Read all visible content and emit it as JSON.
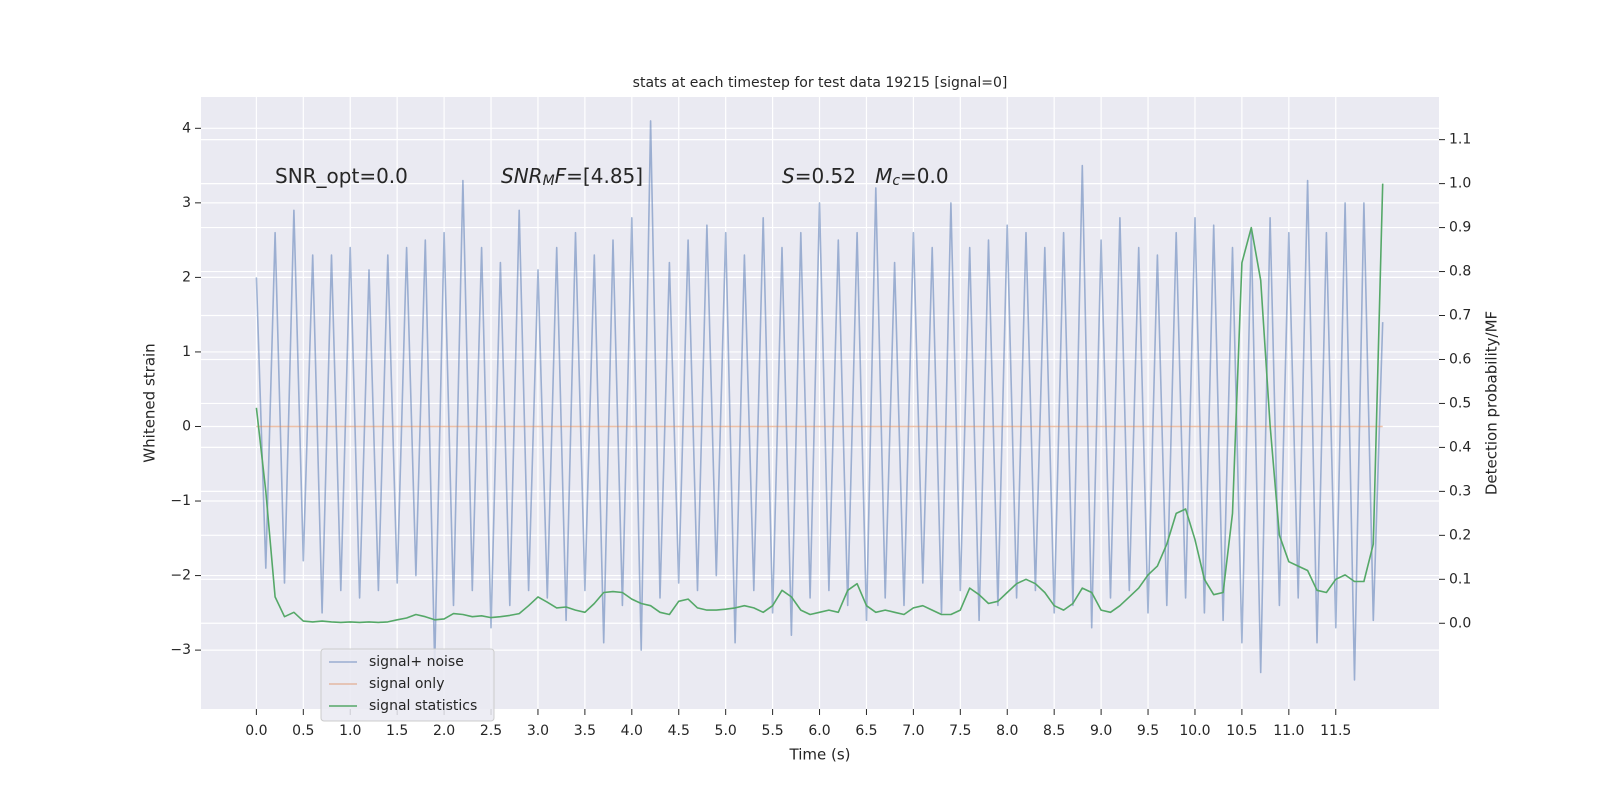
{
  "chart_data": {
    "type": "line",
    "title": "stats at each timestep for test data 19215 [signal=0]",
    "xlabel": "Time (s)",
    "ylabel": "Whitened strain",
    "y2label": "Detection probability/MF",
    "annotations": [
      [
        {
          "text": "SNR_opt=0.0"
        }
      ],
      [
        {
          "text": "SNR",
          "italic": true
        },
        {
          "text": "M",
          "italic": true,
          "sub": true
        },
        {
          "text": "F",
          "italic": true
        },
        {
          "text": "=[4.85]"
        }
      ],
      [
        {
          "text": "S",
          "italic": true
        },
        {
          "text": "=0.52   "
        },
        {
          "text": "M",
          "italic": true
        },
        {
          "text": "c",
          "italic": true,
          "sub": true
        },
        {
          "text": "=0.0"
        }
      ]
    ],
    "x": [
      0.0,
      0.1,
      0.2,
      0.3,
      0.4,
      0.5,
      0.6,
      0.7,
      0.8,
      0.9,
      1.0,
      1.1,
      1.2,
      1.3,
      1.4,
      1.5,
      1.6,
      1.7,
      1.8,
      1.9,
      2.0,
      2.1,
      2.2,
      2.3,
      2.4,
      2.5,
      2.6,
      2.7,
      2.8,
      2.9,
      3.0,
      3.1,
      3.2,
      3.3,
      3.4,
      3.5,
      3.6,
      3.7,
      3.8,
      3.9,
      4.0,
      4.1,
      4.2,
      4.3,
      4.4,
      4.5,
      4.6,
      4.7,
      4.8,
      4.9,
      5.0,
      5.1,
      5.2,
      5.3,
      5.4,
      5.5,
      5.6,
      5.7,
      5.8,
      5.9,
      6.0,
      6.1,
      6.2,
      6.3,
      6.4,
      6.5,
      6.6,
      6.7,
      6.8,
      6.9,
      7.0,
      7.1,
      7.2,
      7.3,
      7.4,
      7.5,
      7.6,
      7.7,
      7.8,
      7.9,
      8.0,
      8.1,
      8.2,
      8.3,
      8.4,
      8.5,
      8.6,
      8.7,
      8.8,
      8.9,
      9.0,
      9.1,
      9.2,
      9.3,
      9.4,
      9.5,
      9.6,
      9.7,
      9.8,
      9.9,
      10.0,
      10.1,
      10.2,
      10.3,
      10.4,
      10.5,
      10.6,
      10.7,
      10.8,
      10.9,
      11.0,
      11.1,
      11.2,
      11.3,
      11.4,
      11.5,
      11.6,
      11.7,
      11.8,
      11.9,
      12.0
    ],
    "series": [
      {
        "name": "signal+ noise",
        "color": "#4c72b0",
        "opacity": 0.5,
        "values": [
          2.0,
          -1.9,
          2.6,
          -2.1,
          2.9,
          -1.8,
          2.3,
          -2.5,
          2.3,
          -2.2,
          2.4,
          -2.3,
          2.1,
          -2.2,
          2.3,
          -2.1,
          2.4,
          -2.0,
          2.5,
          -3.2,
          2.6,
          -2.4,
          3.3,
          -2.2,
          2.4,
          -2.7,
          2.2,
          -2.4,
          2.9,
          -2.2,
          2.1,
          -2.3,
          2.4,
          -2.6,
          2.6,
          -2.2,
          2.3,
          -2.9,
          2.5,
          -2.4,
          2.8,
          -3.0,
          4.1,
          -2.3,
          2.2,
          -2.1,
          2.5,
          -2.2,
          2.7,
          -2.0,
          2.6,
          -2.9,
          2.3,
          -2.2,
          2.8,
          -2.5,
          2.4,
          -2.8,
          2.6,
          -2.3,
          3.0,
          -2.2,
          2.5,
          -2.4,
          2.6,
          -2.6,
          3.2,
          -2.3,
          2.2,
          -2.4,
          2.6,
          -2.1,
          2.4,
          -2.5,
          3.0,
          -2.2,
          2.4,
          -2.6,
          2.5,
          -2.4,
          2.7,
          -2.3,
          2.6,
          -2.2,
          2.4,
          -2.5,
          2.6,
          -2.4,
          3.5,
          -2.7,
          2.5,
          -2.3,
          2.8,
          -2.2,
          2.4,
          -2.5,
          2.3,
          -2.4,
          2.6,
          -2.3,
          2.8,
          -2.5,
          2.7,
          -2.6,
          2.4,
          -2.9,
          2.6,
          -3.3,
          2.8,
          -2.4,
          2.6,
          -2.3,
          3.3,
          -2.9,
          2.6,
          -2.7,
          3.0,
          -3.4,
          3.0,
          -2.6,
          1.4
        ]
      },
      {
        "name": "signal only",
        "color": "#dd8452",
        "opacity": 0.5,
        "x": [
          0.0,
          12.0
        ],
        "values": [
          0,
          0
        ]
      },
      {
        "name": "signal statistics",
        "color": "#55a868",
        "opacity": 1,
        "axis": "y2",
        "values": [
          0.49,
          0.3,
          0.06,
          0.015,
          0.025,
          0.005,
          0.003,
          0.005,
          0.003,
          0.002,
          0.003,
          0.002,
          0.003,
          0.002,
          0.003,
          0.008,
          0.012,
          0.02,
          0.015,
          0.008,
          0.01,
          0.022,
          0.02,
          0.015,
          0.017,
          0.013,
          0.015,
          0.018,
          0.022,
          0.04,
          0.06,
          0.048,
          0.035,
          0.037,
          0.03,
          0.025,
          0.045,
          0.07,
          0.072,
          0.07,
          0.055,
          0.045,
          0.04,
          0.025,
          0.02,
          0.05,
          0.055,
          0.035,
          0.03,
          0.03,
          0.032,
          0.035,
          0.04,
          0.035,
          0.025,
          0.04,
          0.075,
          0.06,
          0.03,
          0.02,
          0.025,
          0.03,
          0.025,
          0.075,
          0.09,
          0.04,
          0.025,
          0.03,
          0.025,
          0.02,
          0.035,
          0.04,
          0.03,
          0.02,
          0.02,
          0.03,
          0.08,
          0.065,
          0.045,
          0.05,
          0.07,
          0.09,
          0.1,
          0.09,
          0.07,
          0.04,
          0.03,
          0.045,
          0.08,
          0.07,
          0.03,
          0.025,
          0.04,
          0.06,
          0.08,
          0.11,
          0.13,
          0.18,
          0.25,
          0.26,
          0.19,
          0.1,
          0.065,
          0.07,
          0.25,
          0.82,
          0.9,
          0.78,
          0.45,
          0.2,
          0.14,
          0.13,
          0.12,
          0.075,
          0.07,
          0.1,
          0.11,
          0.095,
          0.095,
          0.18,
          1.0
        ]
      }
    ],
    "xlim": [
      -0.59,
      12.6
    ],
    "xticks": [
      {
        "value": 0,
        "label": "0.0"
      },
      0.5,
      {
        "value": 1,
        "label": "1.0"
      },
      1.5,
      {
        "value": 2,
        "label": "2.0"
      },
      2.5,
      {
        "value": 3,
        "label": "3.0"
      },
      3.5,
      {
        "value": 4,
        "label": "4.0"
      },
      4.5,
      {
        "value": 5,
        "label": "5.0"
      },
      5.5,
      {
        "value": 6,
        "label": "6.0"
      },
      6.5,
      {
        "value": 7,
        "label": "7.0"
      },
      7.5,
      {
        "value": 8,
        "label": "8.0"
      },
      8.5,
      {
        "value": 9,
        "label": "9.0"
      },
      9.5,
      {
        "value": 10,
        "label": "10.0"
      },
      10.5,
      {
        "value": 11,
        "label": "11.0"
      },
      11.5
    ],
    "ylim": [
      -3.79,
      4.42
    ],
    "yticks": [
      {
        "value": -3,
        "label": "−3"
      },
      {
        "value": -2,
        "label": "−2"
      },
      {
        "value": -1,
        "label": "−1"
      },
      0,
      1,
      2,
      3,
      4
    ],
    "y2lim": [
      -0.195,
      1.197
    ],
    "y2ticks": [
      {
        "value": 0,
        "label": "0.0"
      },
      0.1,
      0.2,
      0.3,
      0.4,
      0.5,
      0.6,
      0.7,
      0.8,
      0.9,
      {
        "value": 1,
        "label": "1.0"
      },
      1.1
    ],
    "grid": true,
    "legend": "lower left"
  }
}
